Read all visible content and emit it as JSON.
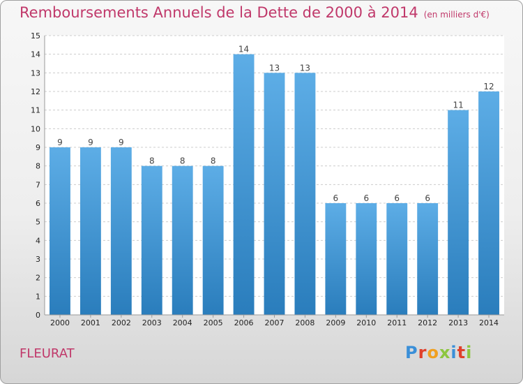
{
  "header": {
    "title": "Remboursements Annuels de la Dette de 2000 à 2014",
    "subtitle": "(en milliers d'€)"
  },
  "footer": {
    "commune": "FLEURAT",
    "logo": "Proxiti"
  },
  "colors": {
    "title": "#c0386a",
    "bar_top": "#5dade6",
    "bar_bottom": "#2a7dbc"
  },
  "chart_data": {
    "type": "bar",
    "categories": [
      "2000",
      "2001",
      "2002",
      "2003",
      "2004",
      "2005",
      "2006",
      "2007",
      "2008",
      "2009",
      "2010",
      "2011",
      "2012",
      "2013",
      "2014"
    ],
    "values": [
      9,
      9,
      9,
      8,
      8,
      8,
      14,
      13,
      13,
      6,
      6,
      6,
      6,
      11,
      12
    ],
    "ylim": [
      0,
      15
    ],
    "yticks": [
      0,
      1,
      2,
      3,
      4,
      5,
      6,
      7,
      8,
      9,
      10,
      11,
      12,
      13,
      14,
      15
    ],
    "grid": true
  }
}
